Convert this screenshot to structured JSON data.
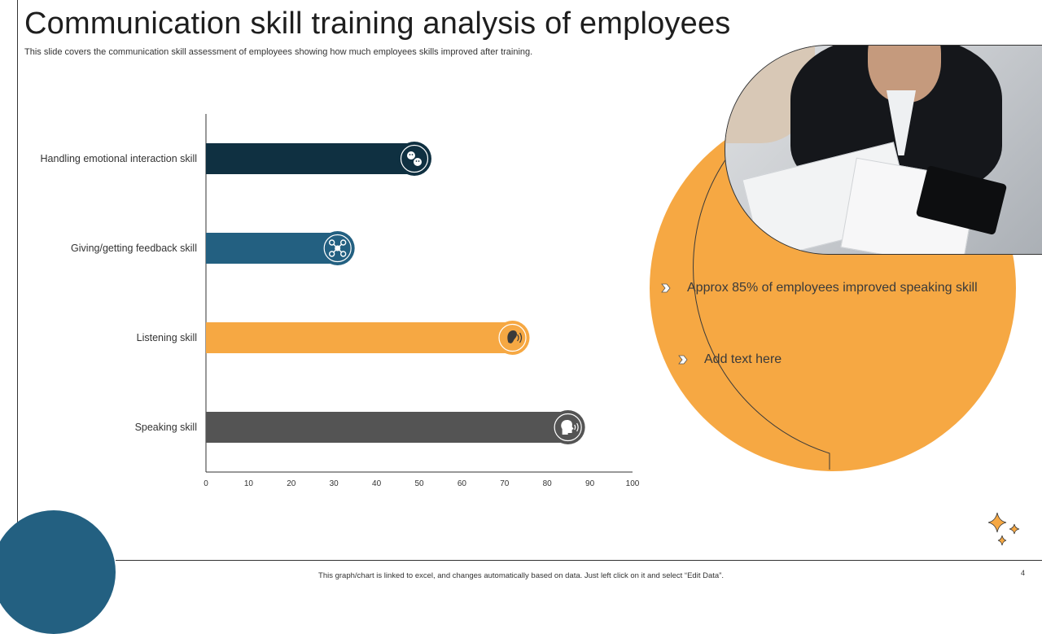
{
  "slide": {
    "title": "Communication skill training analysis of employees",
    "subtitle": "This slide covers the communication skill assessment of employees showing how much employees skills improved after training.",
    "footer": "This graph/chart is linked to excel, and changes automatically based on data. Just left click on it and select “Edit Data”.",
    "page_number": "4"
  },
  "callouts": [
    {
      "text": "Approx 85% of employees improved speaking skill"
    },
    {
      "text": "Add text here"
    }
  ],
  "colors": {
    "accent_orange": "#f6a843",
    "accent_blue": "#236081",
    "dark_teal": "#0f3041",
    "gray": "#545454"
  },
  "chart_data": {
    "type": "bar",
    "orientation": "horizontal",
    "categories": [
      "Handling emotional interaction skill",
      "Giving/getting feedback skill",
      "Listening skill",
      "Speaking skill"
    ],
    "values": [
      50,
      32,
      73,
      86
    ],
    "bar_colors": [
      "#0f3041",
      "#236081",
      "#f6a843",
      "#545454"
    ],
    "bar_icons": [
      "emotions-icon",
      "feedback-network-icon",
      "listening-ear-icon",
      "speaking-head-icon"
    ],
    "xlim": [
      0,
      100
    ],
    "xticks": [
      0,
      10,
      20,
      30,
      40,
      50,
      60,
      70,
      80,
      90,
      100
    ],
    "grid": false,
    "legend": "none"
  }
}
